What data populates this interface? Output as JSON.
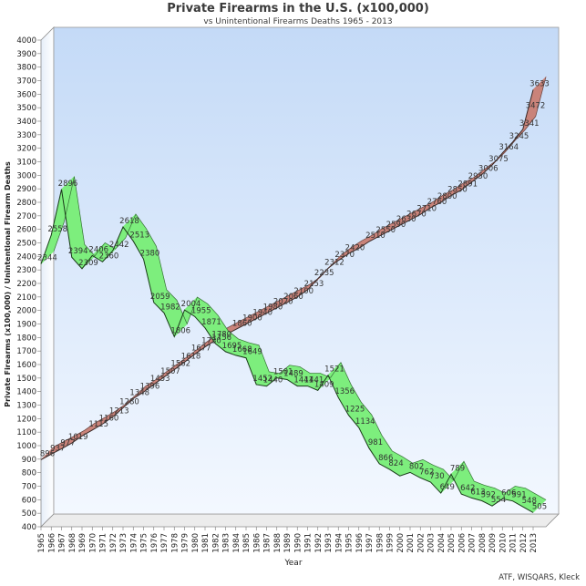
{
  "chart_data": {
    "type": "line",
    "title": "Private Firearms in the U.S. (x100,000)",
    "subtitle": "vs Unintentional Firearms Deaths 1965 - 2013",
    "xlabel": "Year",
    "ylabel": "Private Firearms (x100,000) / Unintentional Firearm Deaths",
    "source": "ATF, WISQARS, Kleck",
    "ylim": [
      400,
      4000
    ],
    "ytick_step": 100,
    "x": [
      1965,
      1966,
      1967,
      1968,
      1969,
      1970,
      1971,
      1972,
      1973,
      1974,
      1975,
      1976,
      1977,
      1978,
      1979,
      1980,
      1981,
      1982,
      1983,
      1984,
      1985,
      1986,
      1987,
      1988,
      1989,
      1990,
      1991,
      1992,
      1993,
      1994,
      1995,
      1996,
      1997,
      1998,
      1999,
      2000,
      2001,
      2002,
      2003,
      2004,
      2005,
      2006,
      2007,
      2008,
      2009,
      2010,
      2011,
      2012,
      2013
    ],
    "series": [
      {
        "key": "firearms",
        "color": "#c9837a",
        "edge": "#3a2a28",
        "values": [
          896,
          937,
          977,
          1019,
          1072,
          1115,
          1160,
          1213,
          1280,
          1348,
          1396,
          1453,
          1507,
          1562,
          1618,
          1677,
          1730,
          1780,
          1820,
          1860,
          1900,
          1940,
          1980,
          2020,
          2060,
          2100,
          2153,
          2235,
          2312,
          2370,
          2420,
          2460,
          2510,
          2550,
          2590,
          2630,
          2670,
          2710,
          2760,
          2800,
          2850,
          2891,
          2950,
          3006,
          3075,
          3164,
          3245,
          3341,
          3633
        ],
        "labels": {
          "1965": "896",
          "1966": "937",
          "1967": "977",
          "1968": "1019",
          "1970": "1115",
          "1971": "1160",
          "1972": "1213",
          "1973": "1280",
          "1974": "1348",
          "1975": "1396",
          "1976": "1453",
          "1977": "1507",
          "1978": "1562",
          "1979": "1618",
          "1980": "1677",
          "1981": "1730",
          "1982": "1780",
          "1984": "1860",
          "1985": "1900",
          "1986": "1940",
          "1987": "1980",
          "1988": "2020",
          "1989": "2060",
          "1990": "2100",
          "1991": "2153",
          "1992": "2235",
          "1993": "2312",
          "1994": "2370",
          "1995": "2420",
          "1997": "2510",
          "1998": "2550",
          "1999": "2590",
          "2000": "2630",
          "2001": "2670",
          "2002": "2710",
          "2003": "2760",
          "2004": "2800",
          "2005": "2850",
          "2006": "2891",
          "2007": "2950",
          "2008": "3006",
          "2009": "3075",
          "2010": "3164",
          "2011": "3245",
          "2012": "3341",
          "2013": "3633"
        },
        "extra_labels": [
          {
            "x": 2012.6,
            "y": 3472,
            "text": "3472"
          }
        ]
      },
      {
        "key": "deaths",
        "color": "#7dee7d",
        "edge": "#1a3a1a",
        "values": [
          2344,
          2558,
          2896,
          2394,
          2309,
          2406,
          2360,
          2442,
          2618,
          2513,
          2380,
          2059,
          1982,
          1806,
          2004,
          1955,
          1871,
          1756,
          1695,
          1668,
          1649,
          1452,
          1440,
          1501,
          1489,
          1441,
          1441,
          1409,
          1521,
          1356,
          1225,
          1134,
          981,
          866,
          824,
          776,
          802,
          762,
          730,
          649,
          789,
          642,
          613,
          592,
          554,
          606,
          591,
          548,
          505
        ],
        "labels": {
          "1965": "2344",
          "1966": "2558",
          "1967": "2896",
          "1968": "2394",
          "1969": "2309",
          "1970": "2406",
          "1971": "2360",
          "1972": "2442",
          "1973": "2618",
          "1974": "2513",
          "1975": "2380",
          "1976": "2059",
          "1977": "1982",
          "1978": "1806",
          "1979": "2004",
          "1980": "1955",
          "1981": "1871",
          "1982": "1756",
          "1983": "1695",
          "1984": "1668",
          "1985": "1649",
          "1986": "1452",
          "1987": "1440",
          "1988": "1501",
          "1989": "1489",
          "1990": "1441",
          "1991": "1441",
          "1992": "1409",
          "1993": "1521",
          "1994": "1356",
          "1995": "1225",
          "1996": "1134",
          "1997": "981",
          "1998": "866",
          "1999": "824",
          "2001": "802",
          "2002": "762",
          "2003": "730",
          "2004": "649",
          "2005": "789",
          "2006": "642",
          "2007": "613",
          "2008": "592",
          "2009": "554",
          "2010": "606",
          "2011": "591",
          "2012": "548",
          "2013": "505"
        }
      }
    ]
  }
}
